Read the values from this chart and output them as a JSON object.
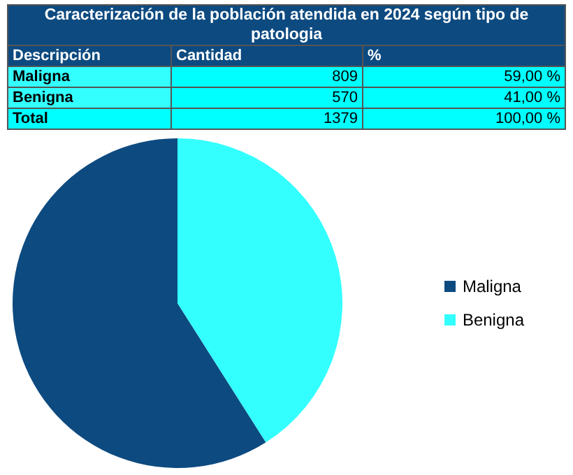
{
  "chart_data": {
    "type": "pie",
    "title": "Caracterización de la población atendida en 2024 según tipo de patologia",
    "categories": [
      "Maligna",
      "Benigna"
    ],
    "values": [
      59,
      41
    ],
    "colors": [
      "#0d4a80",
      "#33ffff"
    ],
    "annotations": [
      "Descripción",
      "Cantidad",
      "%",
      "809",
      "59,00 %",
      "570",
      "41,00 %",
      "Total",
      "1379",
      "100,00 %"
    ],
    "legend": "right"
  }
}
